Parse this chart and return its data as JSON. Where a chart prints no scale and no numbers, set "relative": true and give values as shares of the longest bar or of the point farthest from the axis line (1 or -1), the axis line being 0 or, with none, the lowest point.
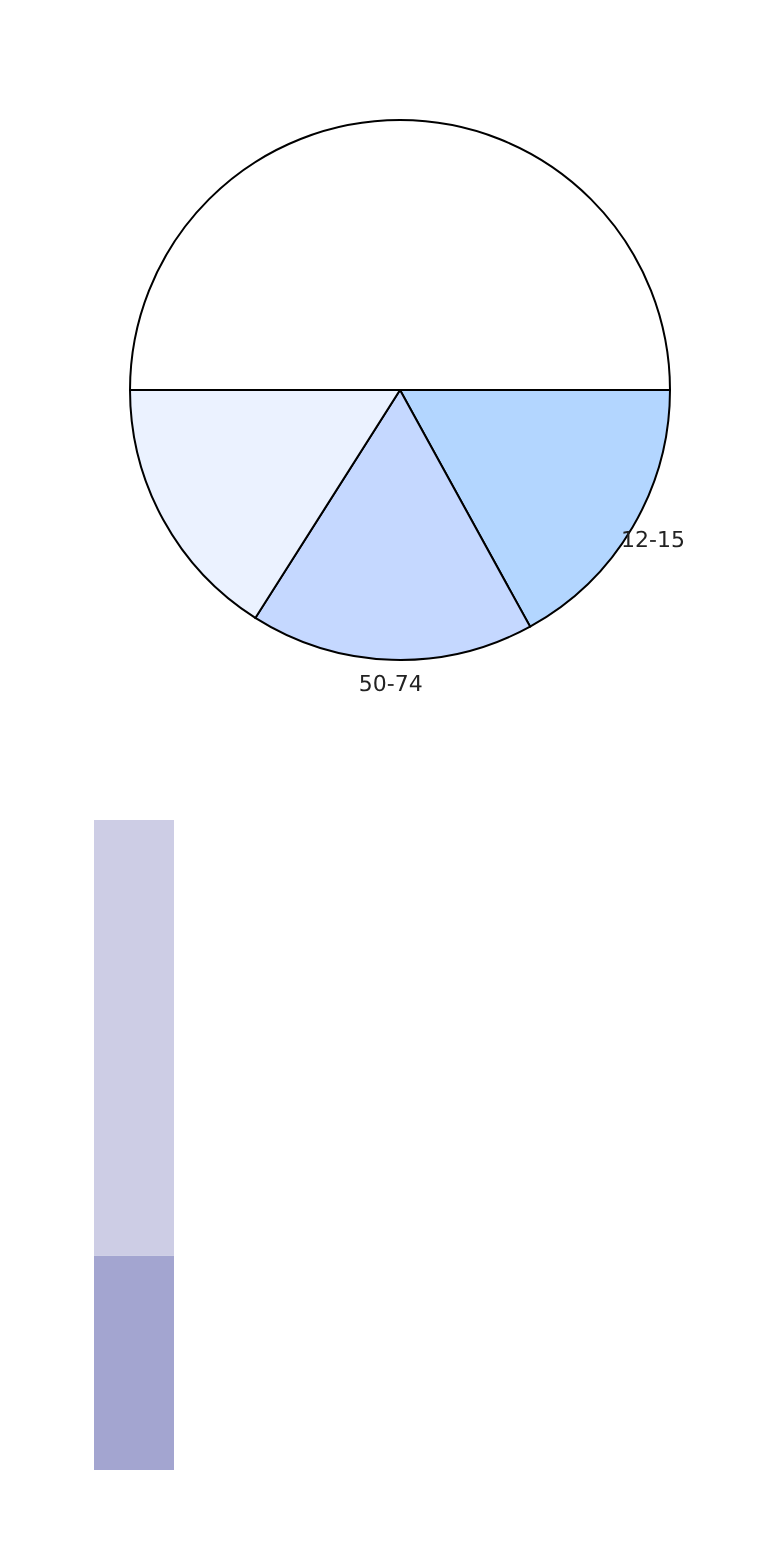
{
  "chart_data": [
    {
      "type": "pie",
      "categories": [
        "12-15",
        "50-74",
        null,
        null
      ],
      "values": [
        17,
        17,
        16,
        50
      ],
      "colors": [
        "#b3d6ff",
        "#c5d8ff",
        "#ebf2ff",
        "#ffffff"
      ]
    },
    {
      "type": "bar",
      "relative": true,
      "stacked": true,
      "categories": [
        null
      ],
      "series": [
        {
          "color": "#a3a5d0",
          "values": [
            0.33
          ]
        },
        {
          "color": "#cdcde5",
          "values": [
            0.67
          ]
        }
      ]
    }
  ]
}
